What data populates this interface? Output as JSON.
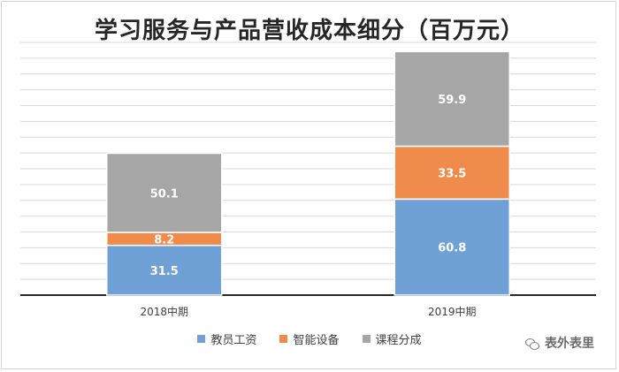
{
  "chart_data": {
    "type": "bar",
    "stacked": true,
    "title": "学习服务与产品营收成本细分（百万元）",
    "categories": [
      "2018中期",
      "2019中期"
    ],
    "series": [
      {
        "name": "教员工资",
        "values": [
          31.5,
          60.8
        ],
        "color": "#6fa1d6"
      },
      {
        "name": "智能设备",
        "values": [
          8.2,
          33.5
        ],
        "color": "#ef8c4b"
      },
      {
        "name": "课程分成",
        "values": [
          50.1,
          59.9
        ],
        "color": "#a6a6a6"
      }
    ],
    "ylim": [
      0,
      160
    ],
    "grid": true,
    "legend": "bottom"
  },
  "watermark": {
    "text": "表外表里",
    "icon": "wechat-icon"
  }
}
